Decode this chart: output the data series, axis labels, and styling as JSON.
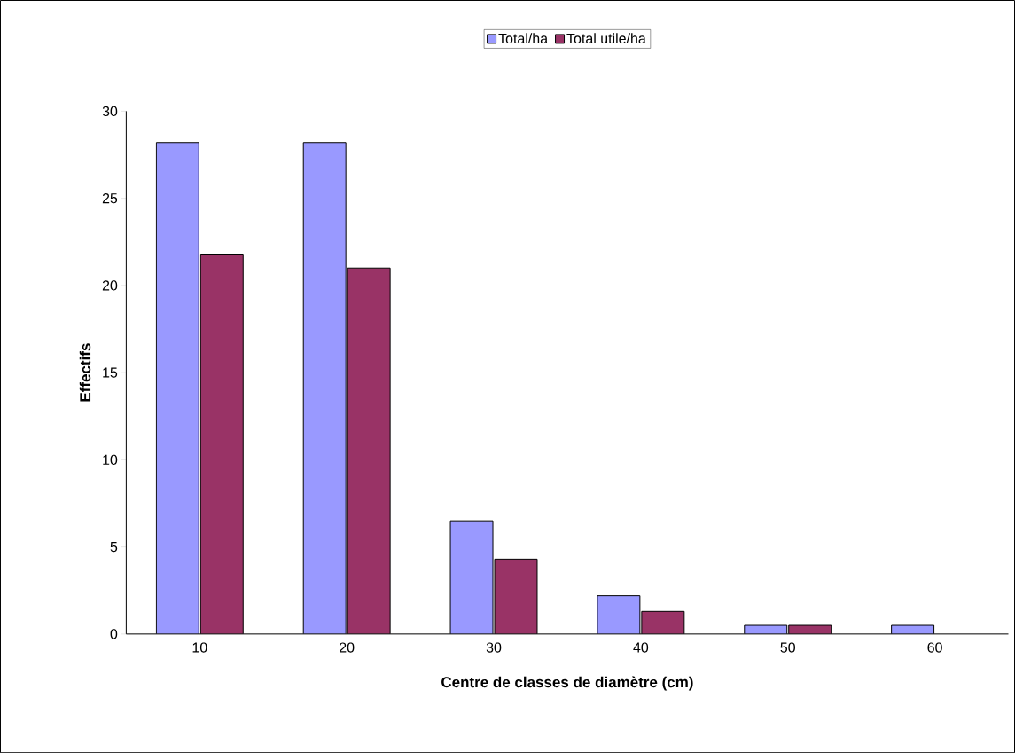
{
  "chart_data": {
    "type": "bar",
    "xlabel": "Centre de classes de diamètre (cm)",
    "ylabel": "Effectifs",
    "categories": [
      "10",
      "20",
      "30",
      "40",
      "50",
      "60"
    ],
    "series": [
      {
        "name": "Total/ha",
        "color": "#9999ff",
        "values": [
          28.2,
          28.2,
          6.5,
          2.2,
          0.5,
          0.5
        ]
      },
      {
        "name": "Total utile/ha",
        "color": "#993366",
        "values": [
          21.8,
          21.0,
          4.3,
          1.3,
          0.5,
          null
        ]
      }
    ],
    "ylim": [
      0,
      30
    ],
    "yticks": [
      0,
      5,
      10,
      15,
      20,
      25,
      30
    ],
    "grid": false,
    "legend": "top"
  }
}
